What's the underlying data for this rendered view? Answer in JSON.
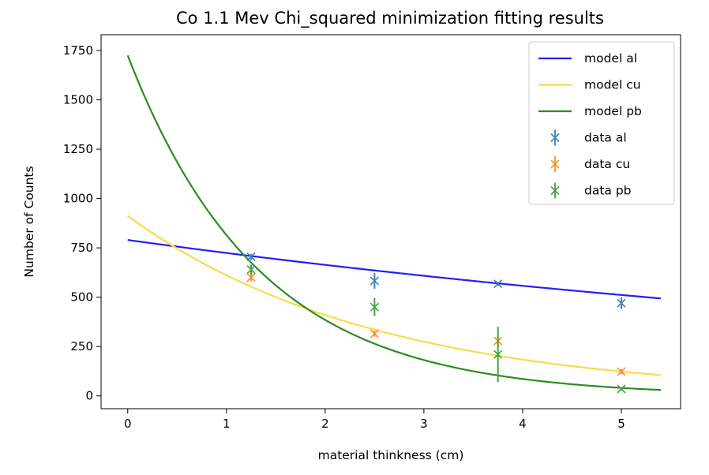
{
  "chart_data": {
    "type": "scatter",
    "title": "Co 1.1 Mev Chi_squared minimization fitting results",
    "xlabel": "material thinkness (cm)",
    "ylabel": "Number of Counts",
    "xlim": [
      -0.27,
      5.6
    ],
    "ylim": [
      -65,
      1830
    ],
    "xticks": [
      0,
      1,
      2,
      3,
      4,
      5
    ],
    "yticks": [
      0,
      250,
      500,
      750,
      1000,
      1250,
      1500,
      1750
    ],
    "grid": false,
    "legend_position": "top-right",
    "models": [
      {
        "name": "model al",
        "color": "#1f1fff",
        "a": 790,
        "b": 0.087,
        "x_range": [
          0,
          5.4
        ]
      },
      {
        "name": "model cu",
        "color": "#ffd84a",
        "a": 912,
        "b": 0.4,
        "x_range": [
          0,
          5.4
        ]
      },
      {
        "name": "model pb",
        "color": "#2e8b22",
        "a": 1725,
        "b": 0.75,
        "x_range": [
          0,
          5.4
        ]
      }
    ],
    "series": [
      {
        "name": "data al",
        "color": "#3f7fbf",
        "points": [
          {
            "x": 1.25,
            "y": 705,
            "yerr": 15
          },
          {
            "x": 2.5,
            "y": 583,
            "yerr": 40
          },
          {
            "x": 3.75,
            "y": 568,
            "yerr": 10
          },
          {
            "x": 5.0,
            "y": 470,
            "yerr": 30
          }
        ]
      },
      {
        "name": "data cu",
        "color": "#ff8c2a",
        "points": [
          {
            "x": 1.25,
            "y": 600,
            "yerr": 20
          },
          {
            "x": 2.5,
            "y": 315,
            "yerr": 15
          },
          {
            "x": 3.75,
            "y": 278,
            "yerr": 30
          },
          {
            "x": 5.0,
            "y": 123,
            "yerr": 12
          }
        ]
      },
      {
        "name": "data pb",
        "color": "#3ea33e",
        "points": [
          {
            "x": 1.25,
            "y": 640,
            "yerr": 25
          },
          {
            "x": 2.5,
            "y": 450,
            "yerr": 45
          },
          {
            "x": 3.75,
            "y": 210,
            "yerr": 140
          },
          {
            "x": 5.0,
            "y": 35,
            "yerr": 8
          }
        ]
      }
    ]
  }
}
